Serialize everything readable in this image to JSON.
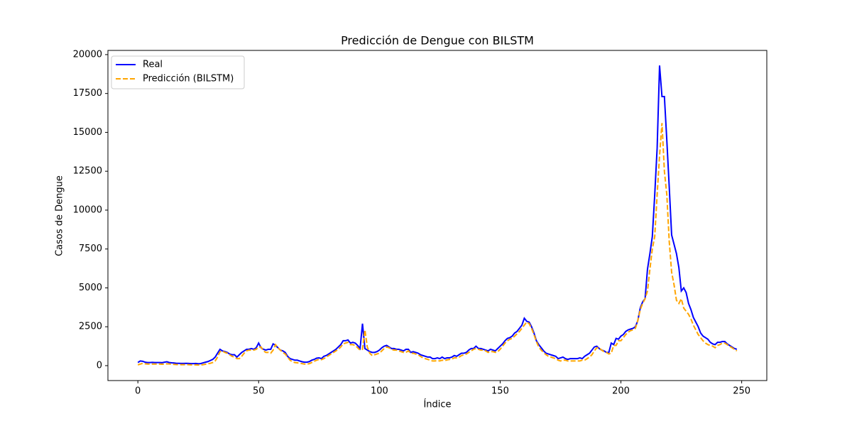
{
  "chart_data": {
    "type": "line",
    "title": "Predicción de Dengue con BILSTM",
    "xlabel": "Índice",
    "ylabel": "Casos de Dengue",
    "xlim": [
      -12.4,
      260.4
    ],
    "xticks": [
      0,
      50,
      100,
      150,
      200,
      250
    ],
    "ylim": [
      -960,
      20270
    ],
    "yticks": [
      0,
      2500,
      5000,
      7500,
      10000,
      12500,
      15000,
      17500,
      20000
    ],
    "legend": "upper left",
    "series": [
      {
        "name": "Real",
        "color": "#0000ff",
        "linestyle": "solid",
        "values": [
          200,
          300,
          280,
          220,
          200,
          200,
          210,
          200,
          200,
          200,
          190,
          220,
          250,
          200,
          180,
          170,
          150,
          150,
          140,
          140,
          150,
          140,
          130,
          130,
          140,
          120,
          130,
          180,
          220,
          260,
          330,
          400,
          550,
          800,
          1050,
          950,
          900,
          850,
          750,
          700,
          700,
          550,
          700,
          850,
          950,
          1050,
          1050,
          1100,
          1050,
          1150,
          1450,
          1150,
          1050,
          1000,
          1050,
          1050,
          1400,
          1300,
          1150,
          1000,
          950,
          850,
          600,
          450,
          400,
          350,
          350,
          300,
          250,
          220,
          220,
          260,
          350,
          400,
          480,
          500,
          450,
          600,
          650,
          750,
          850,
          950,
          1050,
          1200,
          1350,
          1600,
          1600,
          1650,
          1450,
          1500,
          1450,
          1300,
          1100,
          2700,
          1100,
          1000,
          900,
          850,
          850,
          900,
          1000,
          1150,
          1250,
          1300,
          1200,
          1100,
          1100,
          1050,
          1050,
          1000,
          950,
          1050,
          1050,
          850,
          900,
          850,
          800,
          700,
          650,
          600,
          550,
          550,
          450,
          450,
          500,
          450,
          550,
          450,
          500,
          500,
          550,
          650,
          600,
          700,
          800,
          800,
          850,
          1000,
          1100,
          1100,
          1250,
          1100,
          1100,
          1050,
          1000,
          950,
          1050,
          1000,
          950,
          1100,
          1250,
          1400,
          1600,
          1750,
          1800,
          1900,
          2100,
          2200,
          2400,
          2600,
          3050,
          2850,
          2800,
          2500,
          2100,
          1600,
          1350,
          1150,
          950,
          800,
          750,
          700,
          650,
          600,
          450,
          500,
          550,
          450,
          400,
          450,
          450,
          450,
          450,
          500,
          450,
          600,
          700,
          800,
          1000,
          1200,
          1250,
          1100,
          1000,
          950,
          850,
          850,
          1450,
          1350,
          1750,
          1700,
          1900,
          2000,
          2200,
          2300,
          2350,
          2400,
          2500,
          2900,
          3700,
          4100,
          4300,
          6200,
          7200,
          8300,
          11000,
          14000,
          19300,
          17300,
          17300,
          14500,
          11500,
          8400,
          7800,
          7200,
          6300,
          4800,
          5000,
          4700,
          4000,
          3600,
          3100,
          2800,
          2500,
          2100,
          1900,
          1800,
          1700,
          1500,
          1400,
          1350,
          1500,
          1500,
          1550,
          1550,
          1400,
          1300,
          1200,
          1100,
          1050
        ]
      },
      {
        "name": "Predicción (BILSTM)",
        "color": "#ffa500",
        "linestyle": "dashed",
        "values": [
          50,
          100,
          150,
          120,
          100,
          100,
          100,
          100,
          100,
          100,
          90,
          100,
          120,
          110,
          90,
          80,
          70,
          70,
          60,
          60,
          60,
          60,
          50,
          50,
          50,
          40,
          40,
          60,
          90,
          120,
          150,
          200,
          300,
          550,
          900,
          950,
          850,
          800,
          700,
          600,
          550,
          450,
          450,
          600,
          800,
          950,
          1000,
          1000,
          1000,
          1050,
          1200,
          1200,
          950,
          850,
          850,
          800,
          1000,
          1350,
          1150,
          1000,
          850,
          750,
          550,
          350,
          250,
          200,
          180,
          160,
          130,
          100,
          100,
          130,
          200,
          280,
          350,
          400,
          380,
          450,
          550,
          650,
          750,
          850,
          950,
          1050,
          1200,
          1400,
          1450,
          1500,
          1350,
          1350,
          1300,
          1150,
          1000,
          1050,
          2300,
          1200,
          800,
          650,
          700,
          750,
          800,
          950,
          1100,
          1200,
          1150,
          1050,
          1000,
          1000,
          950,
          900,
          850,
          850,
          950,
          800,
          800,
          750,
          700,
          600,
          500,
          450,
          400,
          350,
          300,
          300,
          320,
          300,
          350,
          320,
          370,
          400,
          420,
          500,
          500,
          550,
          650,
          700,
          750,
          850,
          950,
          1050,
          1100,
          1050,
          1000,
          1000,
          950,
          850,
          900,
          900,
          850,
          900,
          1050,
          1250,
          1450,
          1600,
          1700,
          1750,
          1900,
          2050,
          2200,
          2400,
          2600,
          2800,
          2700,
          2400,
          2000,
          1550,
          1200,
          1000,
          850,
          700,
          600,
          550,
          500,
          450,
          350,
          300,
          350,
          350,
          300,
          300,
          300,
          300,
          300,
          300,
          350,
          350,
          450,
          550,
          700,
          950,
          1150,
          1150,
          1000,
          900,
          850,
          750,
          800,
          1300,
          1300,
          1600,
          1600,
          1800,
          2000,
          2150,
          2250,
          2300,
          2400,
          2900,
          3600,
          4000,
          4300,
          4800,
          6200,
          7500,
          8300,
          11000,
          13500,
          15600,
          12500,
          11000,
          8000,
          6000,
          5200,
          4200,
          4000,
          4300,
          3700,
          3500,
          3300,
          3000,
          2600,
          2300,
          2000,
          1800,
          1600,
          1450,
          1350,
          1300,
          1250,
          1150,
          1300,
          1350,
          1450,
          1450,
          1350,
          1250,
          1150,
          1050,
          950
        ]
      }
    ]
  }
}
